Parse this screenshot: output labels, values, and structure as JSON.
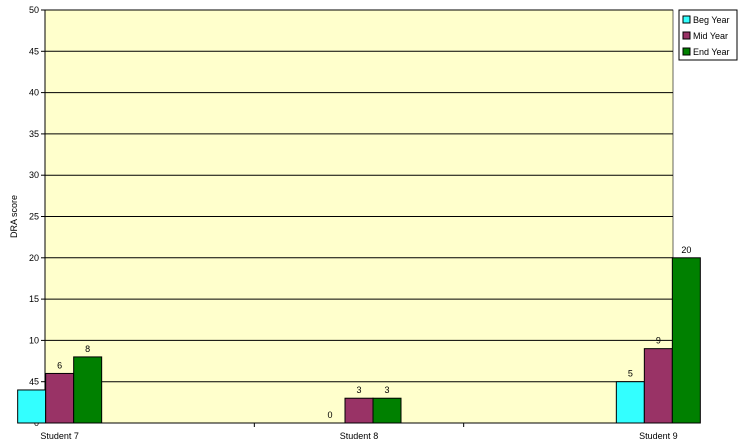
{
  "chart_data": {
    "type": "bar",
    "title": "",
    "xlabel": "",
    "ylabel": "DRA score",
    "ylim": [
      0,
      50
    ],
    "yticks": [
      0,
      5,
      10,
      15,
      20,
      25,
      30,
      35,
      40,
      45,
      50
    ],
    "grid": true,
    "legend_position": "right",
    "categories": [
      "Student 7",
      "Student 8",
      "Student 9"
    ],
    "series": [
      {
        "name": "Beg Year",
        "color": "#33ffff",
        "values": [
          4,
          0,
          5
        ]
      },
      {
        "name": "Mid Year",
        "color": "#993366",
        "values": [
          6,
          3,
          9
        ]
      },
      {
        "name": "End Year",
        "color": "#008000",
        "values": [
          8,
          3,
          20
        ]
      }
    ],
    "plot_background": "#ffffcc"
  }
}
